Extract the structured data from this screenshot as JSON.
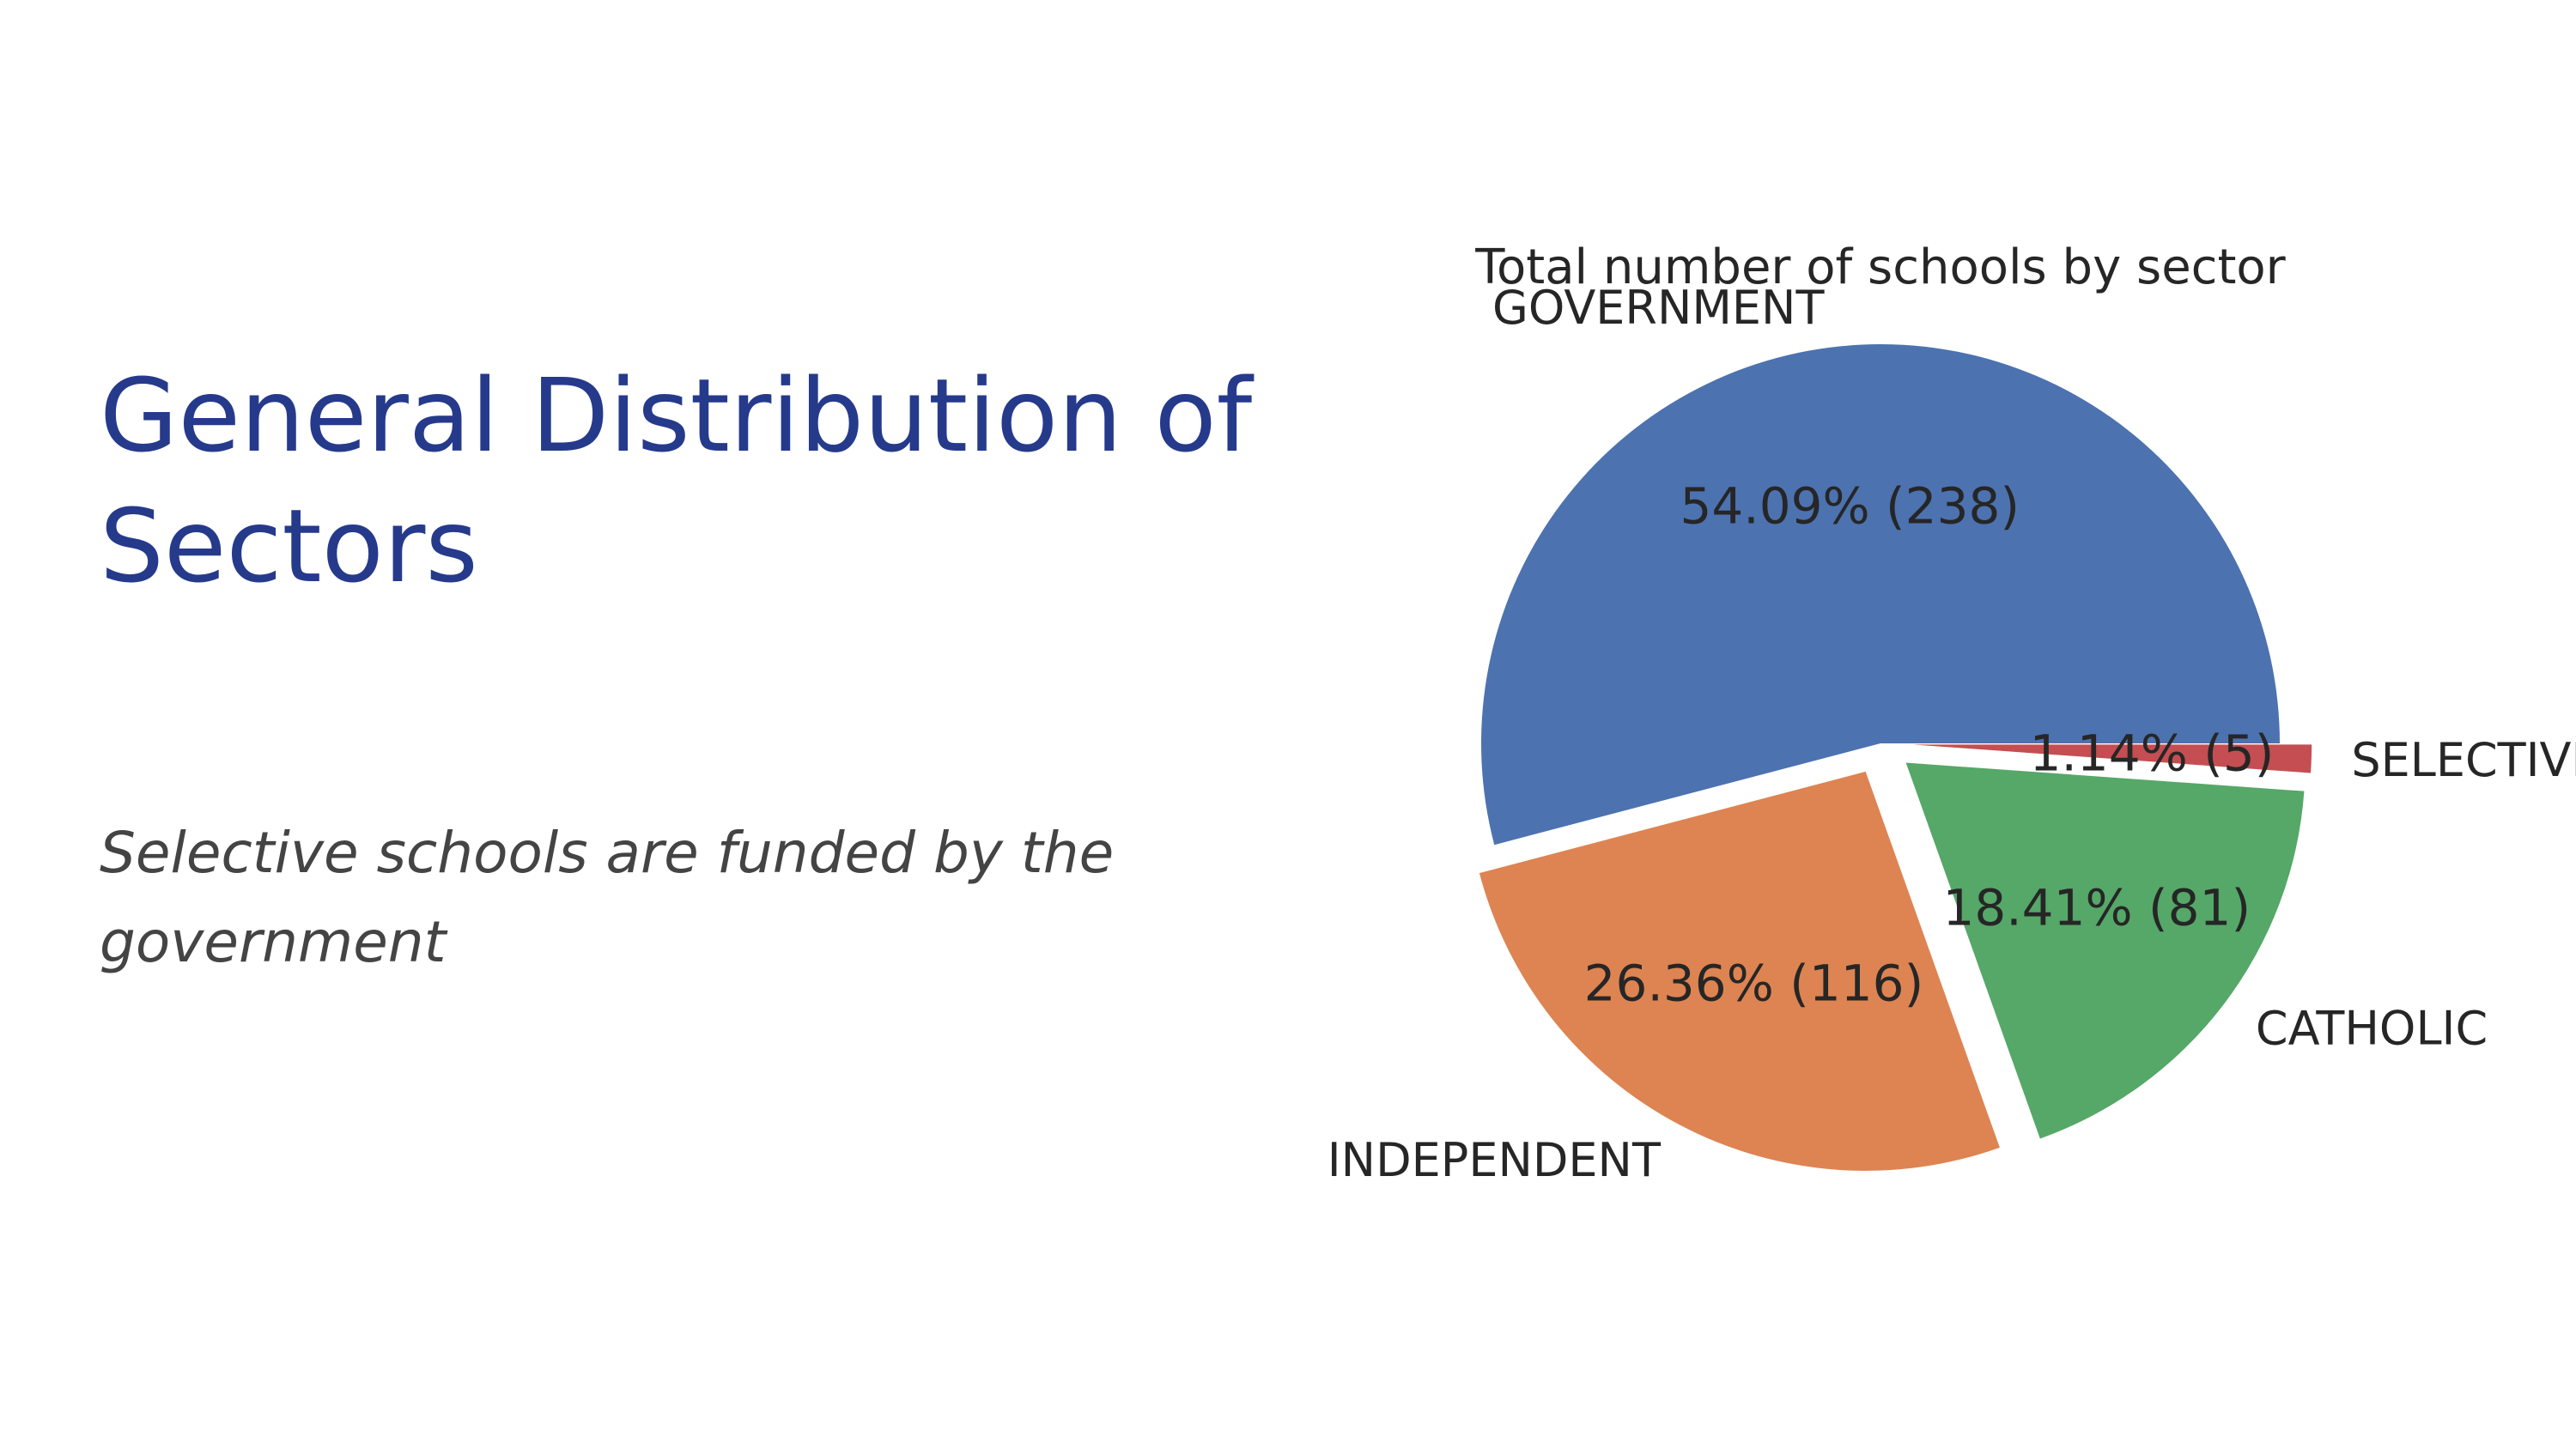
{
  "slide": {
    "title": "General Distribution of Sectors",
    "subtitle": "Selective schools are funded by the government"
  },
  "chart_data": {
    "type": "pie",
    "title": "Total number of schools by sector",
    "slices": [
      {
        "label": "GOVERNMENT",
        "value": 238,
        "percent": 54.09,
        "display": "54.09%  (238)",
        "color": "#4c72b0",
        "exploded": false
      },
      {
        "label": "INDEPENDENT",
        "value": 116,
        "percent": 26.36,
        "display": "26.36%  (116)",
        "color": "#dd8452",
        "exploded": true
      },
      {
        "label": "CATHOLIC",
        "value": 81,
        "percent": 18.41,
        "display": "18.41%  (81)",
        "color": "#55a868",
        "exploded": true
      },
      {
        "label": "SELECTIVE",
        "value": 5,
        "percent": 1.14,
        "display": "1.14%  (5)",
        "color": "#c44e52",
        "exploded": true
      }
    ]
  }
}
